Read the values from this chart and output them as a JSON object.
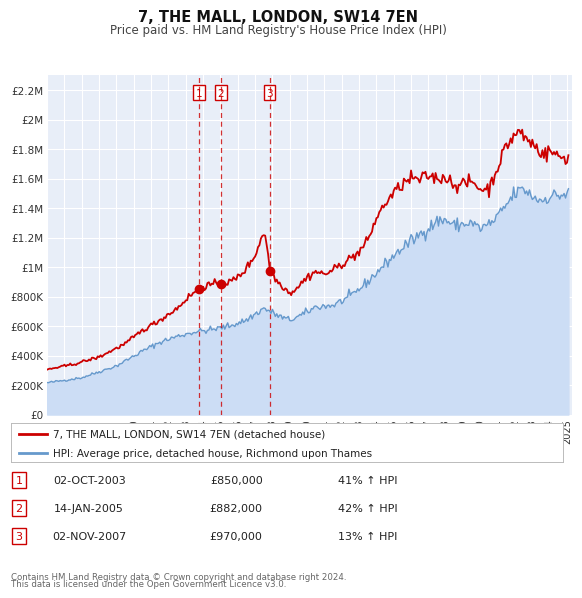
{
  "title": "7, THE MALL, LONDON, SW14 7EN",
  "subtitle": "Price paid vs. HM Land Registry's House Price Index (HPI)",
  "legend_label_red": "7, THE MALL, LONDON, SW14 7EN (detached house)",
  "legend_label_blue": "HPI: Average price, detached house, Richmond upon Thames",
  "footer_line1": "Contains HM Land Registry data © Crown copyright and database right 2024.",
  "footer_line2": "This data is licensed under the Open Government Licence v3.0.",
  "red_color": "#cc0000",
  "blue_color": "#6699cc",
  "blue_fill_color": "#ccddf5",
  "background_color": "#e8eef8",
  "grid_color": "#ffffff",
  "transactions": [
    {
      "num": 1,
      "date_str": "02-OCT-2003",
      "date_x": 2003.753,
      "price": 850000,
      "label": "41% ↑ HPI"
    },
    {
      "num": 2,
      "date_str": "14-JAN-2005",
      "date_x": 2005.036,
      "price": 882000,
      "label": "42% ↑ HPI"
    },
    {
      "num": 3,
      "date_str": "02-NOV-2007",
      "date_x": 2007.836,
      "price": 970000,
      "label": "13% ↑ HPI"
    }
  ],
  "ylim": [
    0,
    2300000
  ],
  "yticks": [
    0,
    200000,
    400000,
    600000,
    800000,
    1000000,
    1200000,
    1400000,
    1600000,
    1800000,
    2000000,
    2200000
  ],
  "ytick_labels": [
    "£0",
    "£200K",
    "£400K",
    "£600K",
    "£800K",
    "£1M",
    "£1.2M",
    "£1.4M",
    "£1.6M",
    "£1.8M",
    "£2M",
    "£2.2M"
  ],
  "xstart": 1995.0,
  "xend": 2025.3,
  "xtick_years": [
    1995,
    1996,
    1997,
    1998,
    1999,
    2000,
    2001,
    2002,
    2003,
    2004,
    2005,
    2006,
    2007,
    2008,
    2009,
    2010,
    2011,
    2012,
    2013,
    2014,
    2015,
    2016,
    2017,
    2018,
    2019,
    2020,
    2021,
    2022,
    2023,
    2024,
    2025
  ]
}
